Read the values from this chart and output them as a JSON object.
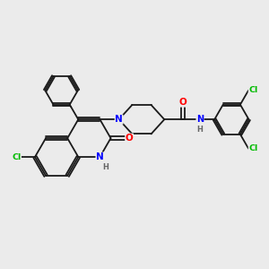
{
  "background_color": "#ebebeb",
  "bond_color": "#1a1a1a",
  "atom_colors": {
    "N": "#0000ff",
    "O": "#ff0000",
    "Cl": "#00bb00",
    "H": "#666666",
    "C": "#1a1a1a"
  },
  "figsize": [
    3.0,
    3.0
  ],
  "dpi": 100,
  "lw": 1.3,
  "lw_double": 1.3
}
